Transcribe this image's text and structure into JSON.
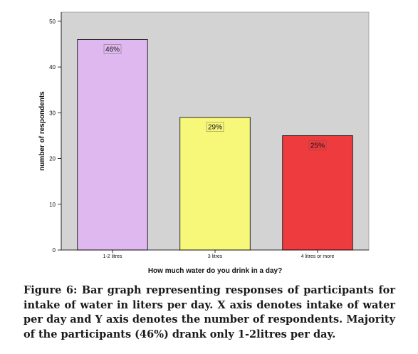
{
  "chart_data": {
    "type": "bar",
    "categories": [
      "1-2 litres",
      "3 litres",
      "4 litres or more"
    ],
    "values": [
      46,
      29,
      25
    ],
    "bar_labels": [
      "46%",
      "29%",
      "25%"
    ],
    "colors": [
      "#dfb8f0",
      "#f7f77a",
      "#ee3b3e"
    ],
    "plot_background": "#d3d3d3",
    "title": "",
    "xlabel": "How much water do you drink in a day?",
    "ylabel": "number of respondents",
    "ylim": [
      0,
      52
    ],
    "yticks": [
      0,
      10,
      20,
      30,
      40,
      50
    ],
    "grid": false,
    "legend": "none"
  },
  "caption": "Figure 6: Bar graph representing responses of participants for intake of water in liters per day. X axis denotes intake of water per day and Y axis denotes the number of respondents. Majority of the participants (46%) drank only 1-2litres per day."
}
